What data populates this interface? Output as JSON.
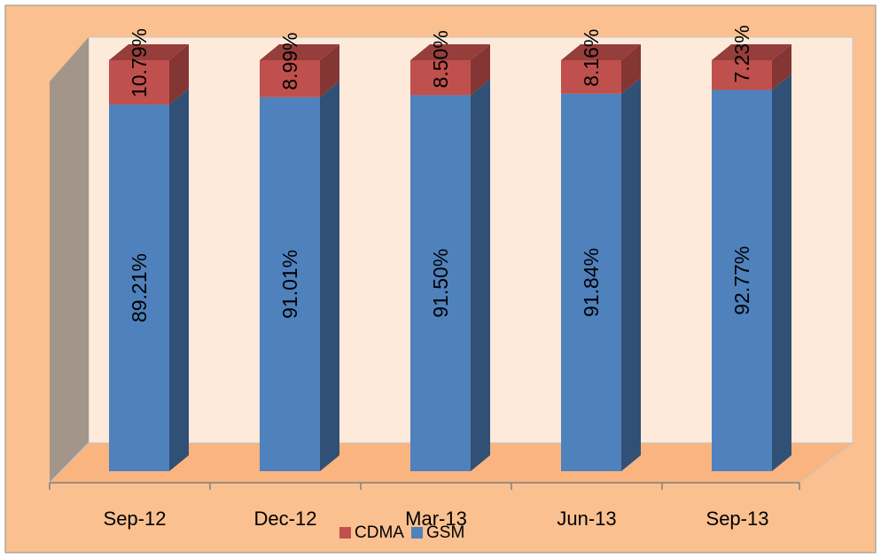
{
  "chart_data": {
    "type": "bar",
    "stacked": true,
    "three_d": true,
    "categories": [
      "Sep-12",
      "Dec-12",
      "Mar-13",
      "Jun-13",
      "Sep-13"
    ],
    "series": [
      {
        "name": "GSM",
        "values": [
          89.21,
          91.01,
          91.5,
          91.84,
          92.77
        ],
        "labels": [
          "89.21%",
          "91.01%",
          "91.50%",
          "91.84%",
          "92.77%"
        ]
      },
      {
        "name": "CDMA",
        "values": [
          10.79,
          8.99,
          8.5,
          8.16,
          7.23
        ],
        "labels": [
          "10.79%",
          "8.99%",
          "8.50%",
          "8.16%",
          "7.23%"
        ]
      }
    ],
    "ylim": [
      0,
      100
    ],
    "legend_position": "bottom",
    "legend_entries": [
      "CDMA",
      "GSM"
    ],
    "colors": {
      "GSM": "#4f81bd",
      "CDMA": "#c0504d",
      "background": "#fac090",
      "plot_wall": "#fdeada",
      "floor": "#f9b47f",
      "side_wall": "#a39589"
    }
  }
}
